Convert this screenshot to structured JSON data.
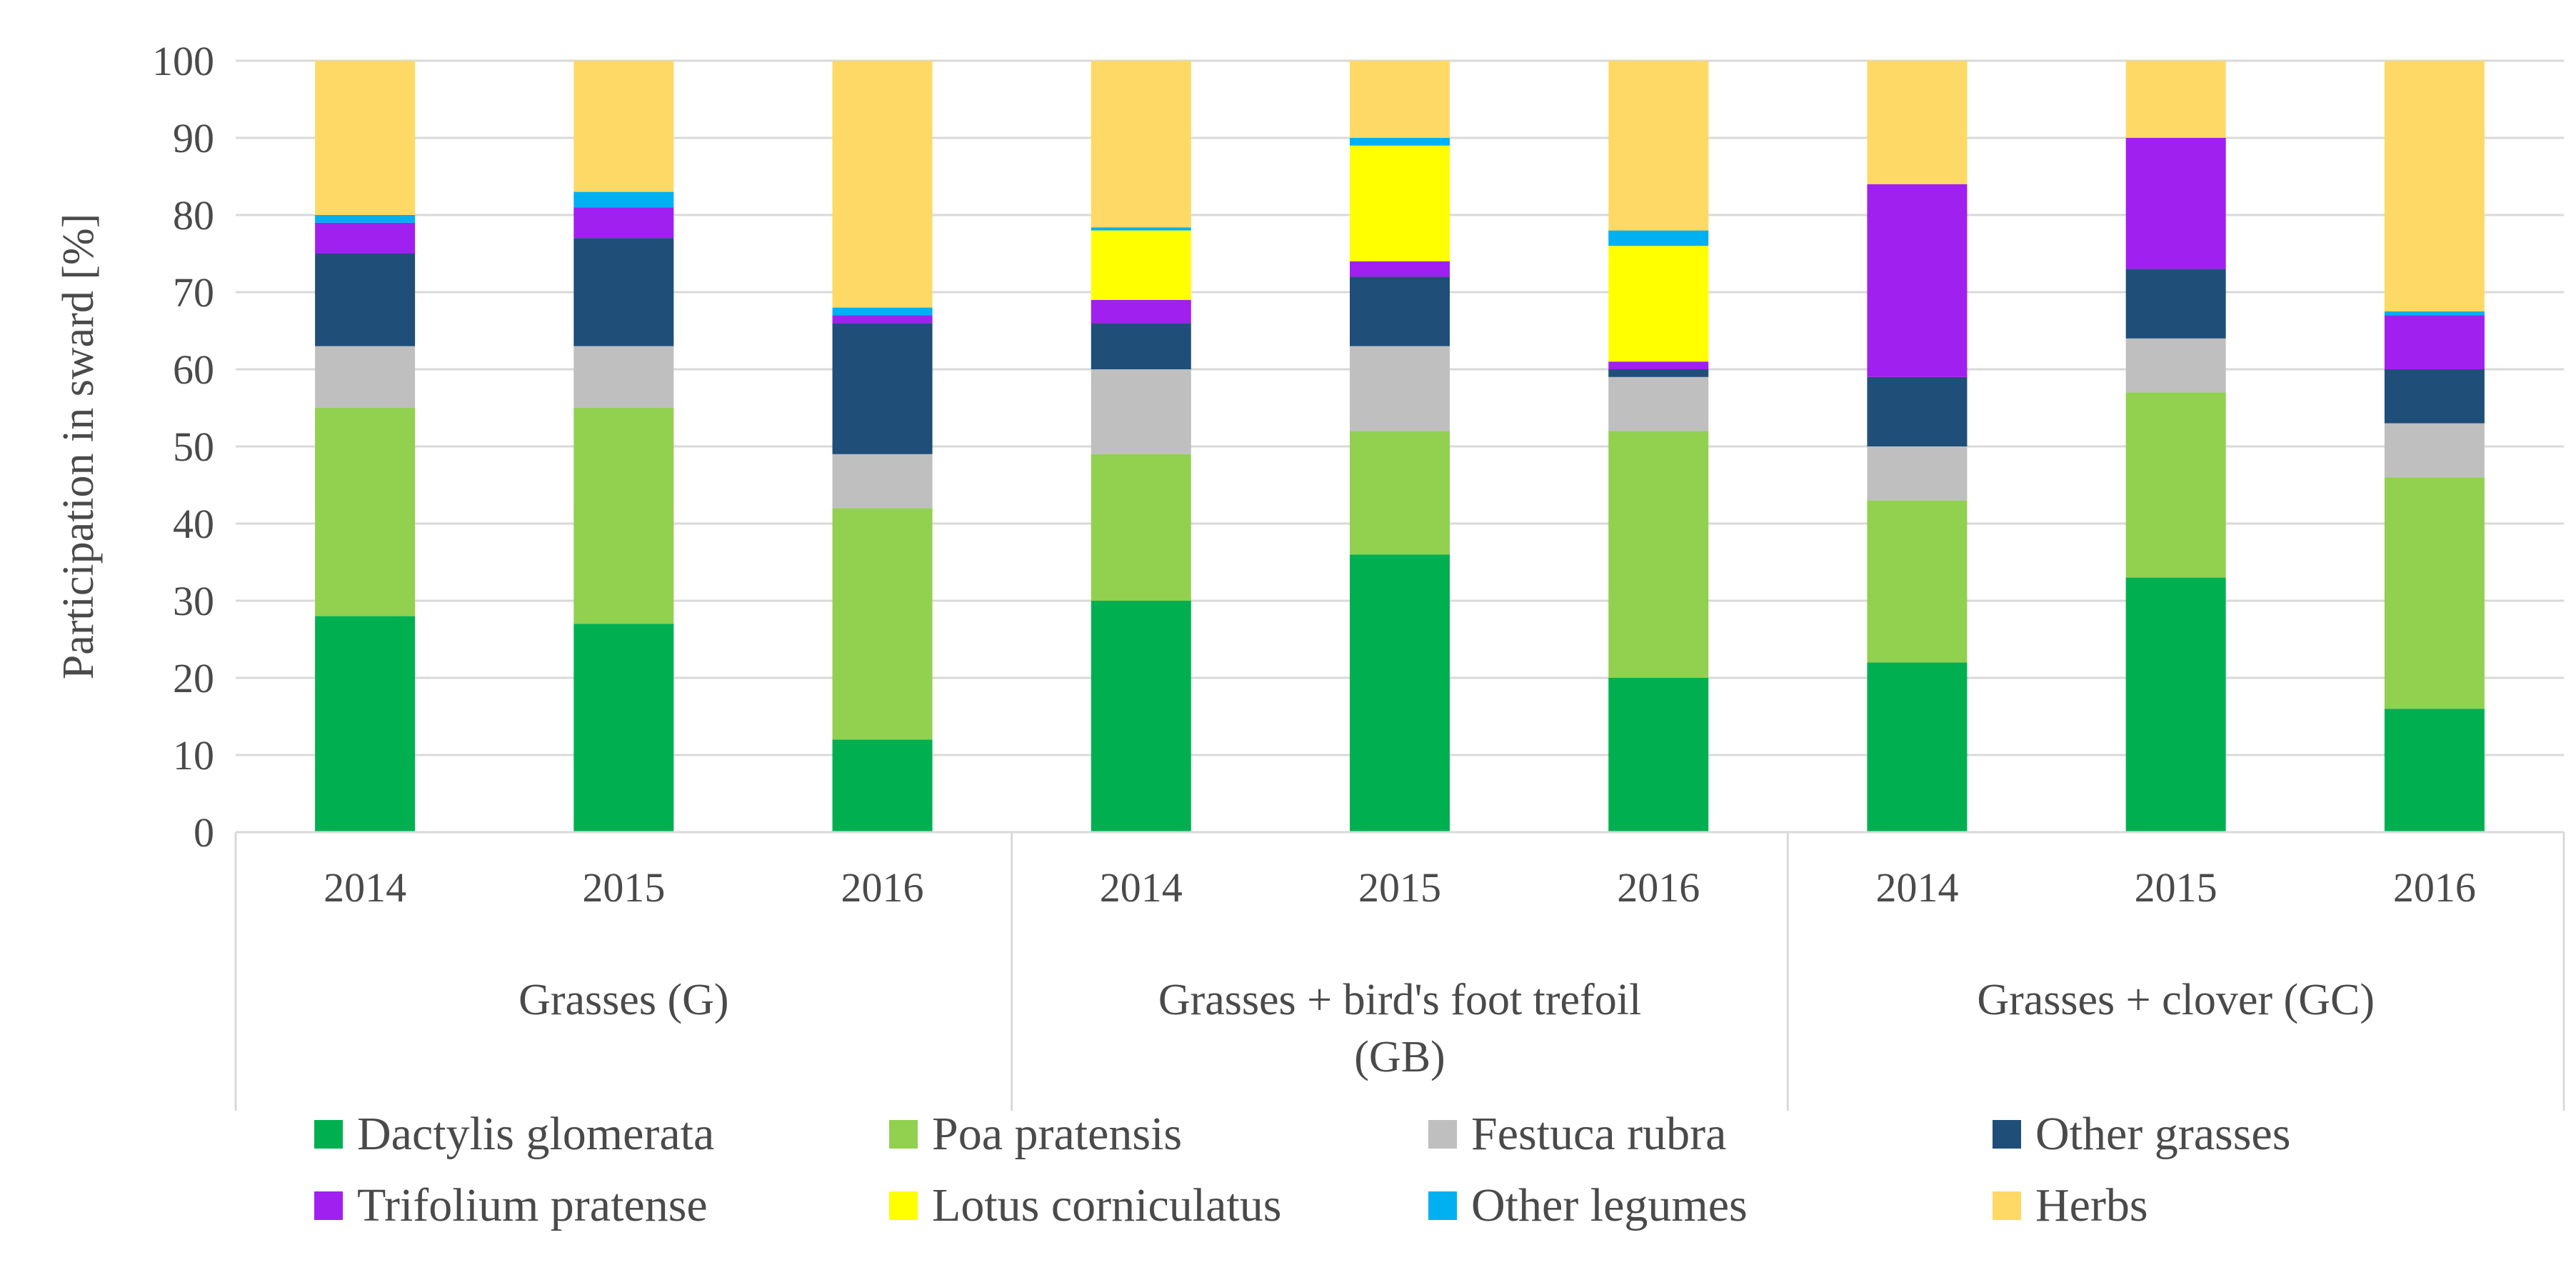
{
  "chart_data": {
    "type": "bar",
    "stacked": true,
    "ylabel": "Participation in sward [%]",
    "ylim": [
      0,
      100
    ],
    "yticks": [
      "0",
      "10",
      "20",
      "30",
      "40",
      "50",
      "60",
      "70",
      "80",
      "90",
      "100"
    ],
    "grid": true,
    "groups": [
      {
        "label_lines": [
          "Grasses (G)"
        ],
        "years": [
          "2014",
          "2015",
          "2016"
        ]
      },
      {
        "label_lines": [
          "Grasses + bird's foot trefoil",
          "(GB)"
        ],
        "years": [
          "2014",
          "2015",
          "2016"
        ]
      },
      {
        "label_lines": [
          "Grasses + clover (GC)"
        ],
        "years": [
          "2014",
          "2015",
          "2016"
        ]
      }
    ],
    "categories": [
      "G 2014",
      "G 2015",
      "G 2016",
      "GB 2014",
      "GB 2015",
      "GB 2016",
      "GC 2014",
      "GC 2015",
      "GC 2016"
    ],
    "series": [
      {
        "name": "Dactylis glomerata",
        "color": "#00B050",
        "values": [
          28,
          27,
          12,
          30,
          36,
          20,
          22,
          33,
          16
        ]
      },
      {
        "name": "Poa pratensis",
        "color": "#92D050",
        "values": [
          27,
          28,
          30,
          19,
          16,
          32,
          21,
          24,
          30
        ]
      },
      {
        "name": "Festuca rubra",
        "color": "#BFBFBF",
        "values": [
          8,
          8,
          7,
          11,
          11,
          7,
          7,
          7,
          7
        ]
      },
      {
        "name": "Other grasses",
        "color": "#1F4E79",
        "values": [
          12,
          14,
          17,
          6,
          9,
          1,
          9,
          9,
          7
        ]
      },
      {
        "name": "Trifolium pratense",
        "color": "#A020F0",
        "values": [
          4,
          4,
          1,
          3,
          2,
          1,
          25,
          17,
          7
        ]
      },
      {
        "name": "Lotus corniculatus",
        "color": "#FFFF00",
        "values": [
          0,
          0,
          0,
          9,
          15,
          15,
          0,
          0,
          0
        ]
      },
      {
        "name": "Other legumes",
        "color": "#00B0F0",
        "values": [
          1,
          2,
          1,
          0.4,
          1,
          2,
          0,
          0,
          0.5
        ]
      },
      {
        "name": "Herbs",
        "color": "#FFD966",
        "values": [
          20,
          17,
          32,
          21.6,
          10,
          22,
          16,
          10,
          32.5
        ]
      }
    ],
    "legend_position": "bottom"
  }
}
